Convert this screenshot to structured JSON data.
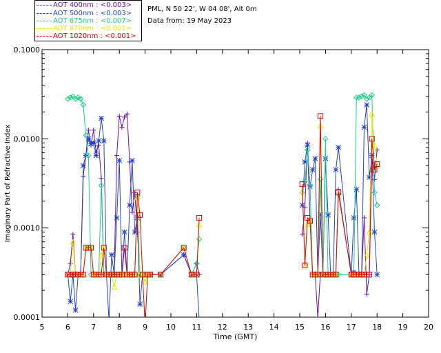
{
  "header": {
    "site_line": "PML, N 50 22', W 04 08', Alt 0m",
    "date_line": "Data from: 19 May 2023"
  },
  "legend": [
    {
      "label": "AOT  400nm : <0.003>",
      "color": "#6a0dad"
    },
    {
      "label": "AOT  500nm : <0.003>",
      "color": "#1f3fd6"
    },
    {
      "label": "AOT  675nm : <0.007>",
      "color": "#19d186"
    },
    {
      "label": "AOT  870nm : <0.001>",
      "color": "#e8e800"
    },
    {
      "label": "AOT 1020nm : <0.001>",
      "color": "#e00000"
    }
  ],
  "chart_data": {
    "type": "line",
    "title": "",
    "xlabel": "Time (GMT)",
    "ylabel": "Imaginary Part of Refractive Index",
    "yscale": "log",
    "xlim": [
      5,
      20
    ],
    "ylim": [
      0.0001,
      0.1
    ],
    "xticks": [
      5,
      6,
      7,
      8,
      9,
      10,
      11,
      12,
      13,
      14,
      15,
      16,
      17,
      18,
      19,
      20
    ],
    "yticks": [
      {
        "value": 0.0001,
        "label": "0.0001"
      },
      {
        "value": 0.001,
        "label": "0.0010"
      },
      {
        "value": 0.01,
        "label": "0.0100"
      },
      {
        "value": 0.1,
        "label": "0.1000"
      }
    ],
    "series": [
      {
        "name": "AOT 400nm",
        "color": "#6a0dad",
        "marker": "plus",
        "x": [
          6.0,
          6.1,
          6.2,
          6.3,
          6.4,
          6.5,
          6.6,
          6.7,
          6.8,
          6.9,
          7.0,
          7.1,
          7.2,
          7.3,
          7.4,
          7.5,
          7.6,
          7.7,
          7.8,
          7.9,
          8.0,
          8.1,
          8.2,
          8.3,
          8.4,
          8.5,
          8.6,
          8.7,
          8.8,
          8.9,
          9.0,
          9.1,
          9.2,
          9.6,
          10.5,
          10.8,
          11.0,
          11.1,
          15.1,
          15.2,
          15.3,
          15.4,
          15.5,
          15.6,
          15.7,
          15.8,
          15.9,
          16.0,
          16.1,
          16.2,
          16.3,
          16.4,
          16.5,
          17.0,
          17.1,
          17.2,
          17.3,
          17.4,
          17.5,
          17.6,
          17.7,
          17.8,
          17.9,
          18.0
        ],
        "y": [
          0.0003,
          0.0004,
          0.00085,
          0.0003,
          0.0003,
          0.0003,
          0.0038,
          0.0065,
          0.0125,
          0.0085,
          0.0125,
          0.0071,
          0.0085,
          0.0036,
          0.0003,
          0.0003,
          0.0003,
          0.0003,
          0.0003,
          0.0065,
          0.018,
          0.0135,
          0.0175,
          0.019,
          0.0055,
          0.0015,
          0.0025,
          0.0009,
          0.0003,
          0.0003,
          0.0003,
          0.0003,
          0.0003,
          0.0003,
          0.0005,
          0.0003,
          0.0004,
          0.0003,
          0.00085,
          0.0017,
          0.009,
          0.0012,
          0.0003,
          0.0003,
          0.0001,
          0.0003,
          0.0003,
          0.0003,
          0.0003,
          0.0003,
          0.0003,
          0.0003,
          0.0027,
          0.0003,
          0.00033,
          0.0003,
          0.0003,
          0.0003,
          0.0013,
          0.00018,
          0.0003,
          0.0065,
          0.0035,
          0.0075
        ]
      },
      {
        "name": "AOT 500nm",
        "color": "#1f3fd6",
        "marker": "star",
        "x": [
          6.0,
          6.1,
          6.2,
          6.3,
          6.4,
          6.5,
          6.6,
          6.7,
          6.8,
          6.9,
          7.0,
          7.1,
          7.2,
          7.3,
          7.4,
          7.5,
          7.6,
          7.7,
          7.8,
          7.9,
          8.0,
          8.1,
          8.2,
          8.3,
          8.4,
          8.5,
          8.6,
          8.7,
          8.8,
          8.9,
          9.0,
          9.1,
          9.2,
          9.6,
          10.5,
          10.8,
          11.0,
          11.1,
          15.1,
          15.2,
          15.3,
          15.4,
          15.5,
          15.6,
          15.7,
          15.8,
          15.9,
          16.0,
          16.1,
          16.2,
          16.3,
          16.4,
          16.5,
          17.0,
          17.1,
          17.2,
          17.3,
          17.4,
          17.5,
          17.6,
          17.7,
          17.8,
          17.9,
          18.0
        ],
        "y": [
          0.0003,
          0.00015,
          0.0003,
          0.00012,
          0.0003,
          0.0003,
          0.005,
          0.0065,
          0.01,
          0.0088,
          0.009,
          0.0065,
          0.0095,
          0.017,
          0.0095,
          0.0003,
          9e-05,
          0.0005,
          0.0003,
          0.0013,
          0.0057,
          0.0003,
          0.0009,
          0.0003,
          0.0018,
          0.0057,
          0.0009,
          0.0013,
          0.00014,
          0.0003,
          0.0003,
          0.0003,
          0.0003,
          0.0003,
          0.0005,
          0.0003,
          0.0003,
          9e-05,
          0.0018,
          0.0055,
          0.0085,
          0.0029,
          0.0045,
          0.006,
          0.0003,
          0.0014,
          0.0003,
          0.006,
          0.0014,
          0.0003,
          0.0003,
          0.0045,
          0.008,
          0.0003,
          0.0013,
          0.0027,
          0.0003,
          0.0003,
          0.0135,
          0.024,
          0.0037,
          0.0065,
          0.0009,
          0.0003
        ]
      },
      {
        "name": "AOT 675nm",
        "color": "#19d186",
        "marker": "diamond",
        "x": [
          6.0,
          6.1,
          6.2,
          6.3,
          6.4,
          6.5,
          6.6,
          6.7,
          6.8,
          6.9,
          7.0,
          7.1,
          7.2,
          7.3,
          7.4,
          7.5,
          7.6,
          7.7,
          7.8,
          7.9,
          8.0,
          8.1,
          8.2,
          8.3,
          8.4,
          8.5,
          8.6,
          8.7,
          8.8,
          8.9,
          9.0,
          9.1,
          9.2,
          9.6,
          10.5,
          10.8,
          11.0,
          11.1,
          15.1,
          15.2,
          15.3,
          15.4,
          15.5,
          15.6,
          15.7,
          15.8,
          15.9,
          16.0,
          16.1,
          16.2,
          16.3,
          16.4,
          16.5,
          17.0,
          17.1,
          17.2,
          17.3,
          17.4,
          17.5,
          17.6,
          17.7,
          17.8,
          17.9,
          18.0
        ],
        "y": [
          0.028,
          0.029,
          0.03,
          0.028,
          0.029,
          0.028,
          0.024,
          0.011,
          0.0065,
          0.0003,
          0.0003,
          0.0003,
          0.0003,
          0.003,
          0.0003,
          0.0003,
          0.0003,
          0.0003,
          0.0003,
          0.0003,
          0.0003,
          0.0003,
          0.0003,
          0.0003,
          0.0003,
          0.0003,
          0.0003,
          0.0023,
          0.0003,
          0.0003,
          0.0003,
          0.0003,
          0.0003,
          0.0003,
          0.0006,
          0.0003,
          0.0004,
          0.00075,
          0.0025,
          0.0033,
          0.0075,
          0.003,
          0.0003,
          0.0003,
          0.0003,
          0.0035,
          0.0003,
          0.01,
          0.0003,
          0.0003,
          0.0003,
          0.0003,
          0.0003,
          0.0003,
          0.0003,
          0.029,
          0.029,
          0.03,
          0.031,
          0.028,
          0.029,
          0.031,
          0.0025,
          0.0018
        ]
      },
      {
        "name": "AOT 870nm",
        "color": "#e8e800",
        "marker": "triangle",
        "x": [
          6.0,
          6.1,
          6.2,
          6.3,
          6.4,
          6.5,
          6.6,
          6.7,
          6.8,
          6.9,
          7.0,
          7.1,
          7.2,
          7.3,
          7.4,
          7.5,
          7.6,
          7.7,
          7.8,
          7.9,
          8.0,
          8.1,
          8.2,
          8.3,
          8.4,
          8.5,
          8.6,
          8.7,
          8.8,
          8.9,
          9.0,
          9.1,
          9.2,
          9.6,
          10.5,
          10.8,
          11.0,
          11.1,
          15.1,
          15.2,
          15.3,
          15.4,
          15.5,
          15.6,
          15.7,
          15.8,
          15.9,
          16.0,
          16.1,
          16.2,
          16.3,
          16.4,
          16.5,
          17.0,
          17.1,
          17.2,
          17.3,
          17.4,
          17.5,
          17.6,
          17.7,
          17.8,
          17.9,
          18.0
        ],
        "y": [
          0.0003,
          0.0003,
          0.0007,
          0.0003,
          0.0003,
          0.0003,
          0.0003,
          0.0006,
          0.0006,
          0.0006,
          0.0003,
          0.0003,
          0.0003,
          0.0005,
          0.0006,
          0.0003,
          0.0003,
          0.0003,
          0.00022,
          0.0003,
          0.0003,
          0.0003,
          0.0003,
          0.0003,
          0.0003,
          0.0003,
          0.0003,
          0.0022,
          0.0003,
          0.0003,
          0.00025,
          0.0003,
          0.0003,
          0.0003,
          0.0006,
          0.0003,
          0.0003,
          0.0011,
          0.0026,
          0.0004,
          0.0011,
          0.0012,
          0.0003,
          0.0003,
          0.0003,
          0.014,
          0.0003,
          0.0003,
          0.0003,
          0.0003,
          0.0003,
          0.0003,
          0.0025,
          0.0003,
          0.0003,
          0.0003,
          0.0003,
          0.0003,
          0.0003,
          0.0005,
          0.0009,
          0.019,
          0.0085,
          0.005
        ]
      },
      {
        "name": "AOT 1020nm",
        "color": "#e00000",
        "marker": "square",
        "x": [
          6.0,
          6.1,
          6.2,
          6.3,
          6.4,
          6.5,
          6.6,
          6.7,
          6.8,
          6.9,
          7.0,
          7.1,
          7.2,
          7.3,
          7.4,
          7.5,
          7.6,
          7.7,
          7.8,
          7.9,
          8.0,
          8.1,
          8.2,
          8.3,
          8.4,
          8.5,
          8.6,
          8.7,
          8.8,
          8.9,
          9.0,
          9.1,
          9.2,
          9.6,
          10.5,
          10.8,
          11.0,
          11.1,
          15.1,
          15.2,
          15.3,
          15.4,
          15.5,
          15.6,
          15.7,
          15.8,
          15.9,
          16.0,
          16.1,
          16.2,
          16.3,
          16.4,
          16.5,
          17.0,
          17.1,
          17.2,
          17.3,
          17.4,
          17.5,
          17.6,
          17.7,
          17.8,
          17.9,
          18.0
        ],
        "y": [
          0.0003,
          0.0003,
          0.0003,
          0.0003,
          0.0003,
          0.0003,
          0.0003,
          0.0006,
          0.0006,
          0.0006,
          0.0003,
          0.0003,
          0.0003,
          0.0003,
          0.0006,
          0.0003,
          0.0003,
          0.0003,
          0.0003,
          0.0003,
          0.0003,
          0.0003,
          0.0006,
          0.0003,
          0.0003,
          0.0003,
          0.0003,
          0.0025,
          0.0014,
          0.0003,
          8e-05,
          0.0003,
          0.0003,
          0.0003,
          0.0006,
          0.0003,
          0.0003,
          0.0013,
          0.0031,
          0.00038,
          0.0013,
          0.0012,
          0.0003,
          0.0003,
          0.0003,
          0.018,
          0.0003,
          0.0003,
          0.0003,
          0.0003,
          0.0003,
          0.0003,
          0.0025,
          0.0003,
          0.0003,
          0.0003,
          0.0003,
          0.0003,
          0.0003,
          0.0003,
          0.0003,
          0.01,
          0.0045,
          0.0052
        ]
      }
    ]
  }
}
